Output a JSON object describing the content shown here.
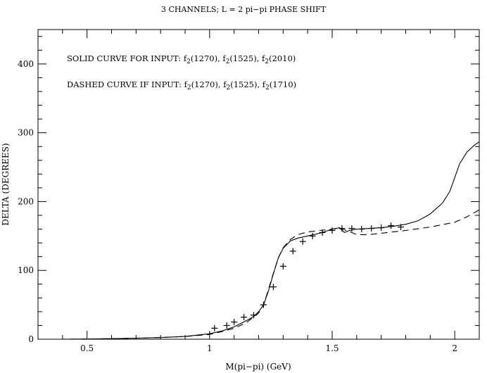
{
  "chart_data": {
    "type": "line",
    "title": "3 CHANNELS;  L = 2  pi−pi PHASE SHIFT",
    "xlabel": "M(pi−pi) (GeV)",
    "ylabel": "DELTA (DEGREES)",
    "xlim": [
      0.3,
      2.1
    ],
    "ylim": [
      0,
      450
    ],
    "x_ticks": [
      {
        "value": 0.5,
        "label": "0.5"
      },
      {
        "value": 1.0,
        "label": "1"
      },
      {
        "value": 1.5,
        "label": "1.5"
      },
      {
        "value": 2.0,
        "label": "2"
      }
    ],
    "y_ticks": [
      {
        "value": 0,
        "label": "0"
      },
      {
        "value": 100,
        "label": "100"
      },
      {
        "value": 200,
        "label": "200"
      },
      {
        "value": 300,
        "label": "300"
      },
      {
        "value": 400,
        "label": "400"
      }
    ],
    "annotations": [
      {
        "prefix": "SOLID CURVE FOR INPUT: ",
        "items": [
          "1270",
          "1525",
          "2010"
        ]
      },
      {
        "prefix": "DASHED CURVE IF INPUT: ",
        "items": [
          "1270",
          "1525",
          "1710"
        ]
      }
    ],
    "series": [
      {
        "style": "solid",
        "x": [
          0.3,
          0.4,
          0.5,
          0.6,
          0.7,
          0.8,
          0.9,
          1.0,
          1.05,
          1.1,
          1.15,
          1.18,
          1.2,
          1.22,
          1.24,
          1.26,
          1.28,
          1.3,
          1.33,
          1.36,
          1.4,
          1.45,
          1.5,
          1.53,
          1.55,
          1.57,
          1.6,
          1.65,
          1.7,
          1.75,
          1.8,
          1.85,
          1.9,
          1.95,
          1.98,
          2.0,
          2.02,
          2.05,
          2.08,
          2.1
        ],
        "y": [
          0,
          0,
          0.3,
          0.8,
          1.5,
          2.5,
          4,
          8,
          12,
          18,
          27,
          33,
          40,
          50,
          70,
          95,
          118,
          132,
          143,
          147,
          150,
          154,
          160,
          162,
          155,
          158,
          160,
          161,
          162,
          164,
          167,
          172,
          182,
          198,
          215,
          235,
          255,
          272,
          282,
          287
        ]
      },
      {
        "style": "dashed",
        "x": [
          0.3,
          0.4,
          0.5,
          0.6,
          0.7,
          0.8,
          0.9,
          1.0,
          1.05,
          1.1,
          1.15,
          1.2,
          1.22,
          1.24,
          1.26,
          1.28,
          1.3,
          1.33,
          1.36,
          1.4,
          1.45,
          1.5,
          1.53,
          1.55,
          1.58,
          1.6,
          1.65,
          1.7,
          1.8,
          1.9,
          2.0,
          2.05,
          2.1
        ],
        "y": [
          0,
          0,
          0.3,
          0.8,
          1.5,
          2.5,
          4,
          7,
          11,
          16,
          24,
          38,
          50,
          72,
          96,
          118,
          133,
          145,
          152,
          156,
          158,
          160,
          161,
          159,
          155,
          152,
          152,
          154,
          158,
          163,
          170,
          178,
          188
        ]
      },
      {
        "style": "markers",
        "x": [
          1.02,
          1.07,
          1.1,
          1.14,
          1.18,
          1.22,
          1.26,
          1.3,
          1.34,
          1.38,
          1.42,
          1.46,
          1.5,
          1.54,
          1.58,
          1.62,
          1.66,
          1.7,
          1.74,
          1.78
        ],
        "y": [
          16,
          20,
          25,
          32,
          35,
          50,
          76,
          106,
          128,
          142,
          150,
          155,
          158,
          161,
          161,
          160,
          161,
          162,
          165,
          163
        ]
      }
    ],
    "grid": false,
    "legend": "none"
  }
}
